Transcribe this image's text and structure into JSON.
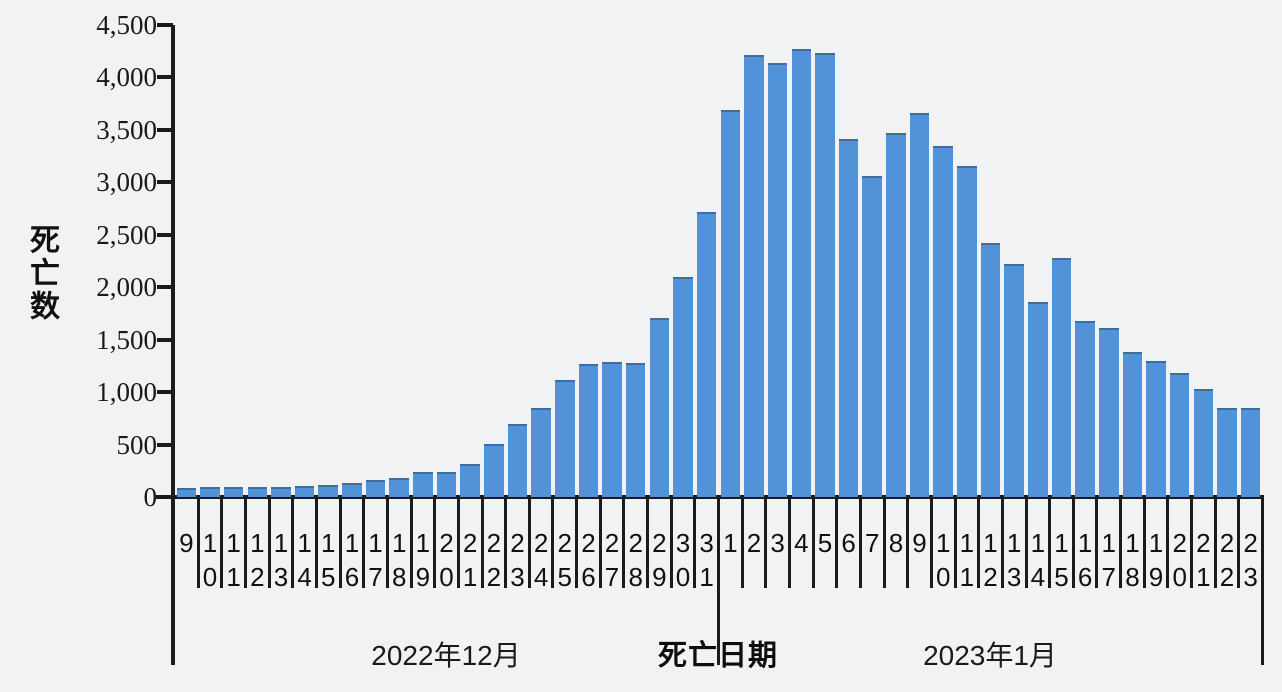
{
  "chart_data": {
    "type": "bar",
    "title": "",
    "ylabel": "死亡数",
    "xlabel": "死亡日期",
    "ylim": [
      0,
      4500
    ],
    "y_tick_step": 500,
    "y_tick_labels": [
      "0",
      "500",
      "1,000",
      "1,500",
      "2,000",
      "2,500",
      "3,000",
      "3,500",
      "4,000",
      "4,500"
    ],
    "bar_color": "#5192d8",
    "grid": "off",
    "legend": "none",
    "groups": [
      {
        "label": "2022年12月",
        "days": [
          "9",
          "10",
          "11",
          "12",
          "13",
          "14",
          "15",
          "16",
          "17",
          "18",
          "19",
          "20",
          "21",
          "22",
          "23",
          "24",
          "25",
          "26",
          "27",
          "28",
          "29",
          "30",
          "31"
        ],
        "values": [
          90,
          95,
          95,
          95,
          95,
          105,
          115,
          135,
          165,
          185,
          235,
          240,
          315,
          505,
          700,
          845,
          1120,
          1265,
          1290,
          1280,
          1710,
          2100,
          2720
        ]
      },
      {
        "label": "2023年1月",
        "days": [
          "1",
          "2",
          "3",
          "4",
          "5",
          "6",
          "7",
          "8",
          "9",
          "10",
          "11",
          "12",
          "13",
          "14",
          "15",
          "16",
          "17",
          "18",
          "19",
          "20",
          "21",
          "22",
          "23"
        ],
        "values": [
          3690,
          4210,
          4140,
          4270,
          4230,
          3410,
          3060,
          3475,
          3665,
          3350,
          3160,
          2420,
          2220,
          1860,
          2280,
          1680,
          1610,
          1380,
          1300,
          1180,
          1030,
          850,
          850
        ]
      }
    ]
  }
}
